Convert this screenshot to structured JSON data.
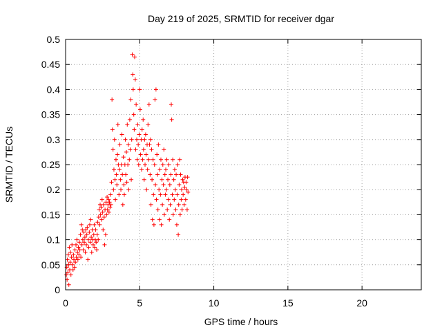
{
  "chart_data": {
    "type": "scatter",
    "title": "Day 219 of 2025, SRMTID for receiver dgar",
    "xlabel": "GPS time / hours",
    "ylabel": "SRMTID / TECUs",
    "xlim": [
      0,
      24
    ],
    "ylim": [
      0,
      0.5
    ],
    "grid": true,
    "marker": "+",
    "color": "#ff0000",
    "x_ticks": [
      0,
      5,
      10,
      15,
      20
    ],
    "x_tick_labels": [
      "0",
      "5",
      "10",
      "15",
      "20"
    ],
    "y_ticks": [
      0,
      0.05,
      0.1,
      0.15,
      0.2,
      0.25,
      0.3,
      0.35,
      0.4,
      0.45,
      0.5
    ],
    "y_tick_labels": [
      "0",
      "0.05",
      "0.1",
      "0.15",
      "0.2",
      "0.25",
      "0.3",
      "0.35",
      "0.4",
      "0.45",
      "0.5"
    ],
    "series": [
      {
        "name": "SRMTID",
        "points": [
          [
            0.05,
            0.03
          ],
          [
            0.08,
            0.045
          ],
          [
            0.1,
            0.02
          ],
          [
            0.12,
            0.06
          ],
          [
            0.15,
            0.035
          ],
          [
            0.18,
            0.07
          ],
          [
            0.2,
            0.05
          ],
          [
            0.22,
            0.01
          ],
          [
            0.25,
            0.085
          ],
          [
            0.28,
            0.04
          ],
          [
            0.3,
            0.055
          ],
          [
            0.33,
            0.075
          ],
          [
            0.36,
            0.03
          ],
          [
            0.4,
            0.065
          ],
          [
            0.43,
            0.09
          ],
          [
            0.46,
            0.05
          ],
          [
            0.5,
            0.04
          ],
          [
            0.53,
            0.07
          ],
          [
            0.56,
            0.06
          ],
          [
            0.6,
            0.045
          ],
          [
            0.63,
            0.08
          ],
          [
            0.66,
            0.055
          ],
          [
            0.7,
            0.09
          ],
          [
            0.73,
            0.065
          ],
          [
            0.76,
            0.1
          ],
          [
            0.8,
            0.075
          ],
          [
            0.83,
            0.06
          ],
          [
            0.86,
            0.085
          ],
          [
            0.9,
            0.07
          ],
          [
            0.93,
            0.095
          ],
          [
            0.96,
            0.08
          ],
          [
            1.0,
            0.11
          ],
          [
            1.03,
            0.065
          ],
          [
            1.06,
            0.13
          ],
          [
            1.1,
            0.09
          ],
          [
            1.13,
            0.12
          ],
          [
            1.16,
            0.1
          ],
          [
            1.2,
            0.08
          ],
          [
            1.23,
            0.115
          ],
          [
            1.26,
            0.095
          ],
          [
            1.3,
            0.105
          ],
          [
            1.33,
            0.075
          ],
          [
            1.36,
            0.12
          ],
          [
            1.4,
            0.09
          ],
          [
            1.43,
            0.11
          ],
          [
            1.46,
            0.125
          ],
          [
            1.5,
            0.06
          ],
          [
            1.53,
            0.1
          ],
          [
            1.56,
            0.085
          ],
          [
            1.6,
            0.115
          ],
          [
            1.63,
            0.13
          ],
          [
            1.66,
            0.095
          ],
          [
            1.7,
            0.14
          ],
          [
            1.73,
            0.105
          ],
          [
            1.76,
            0.075
          ],
          [
            1.8,
            0.12
          ],
          [
            1.83,
            0.1
          ],
          [
            1.86,
            0.09
          ],
          [
            1.9,
            0.11
          ],
          [
            1.93,
            0.13
          ],
          [
            1.96,
            0.085
          ],
          [
            2.0,
            0.1
          ],
          [
            2.03,
            0.12
          ],
          [
            2.06,
            0.095
          ],
          [
            2.1,
            0.08
          ],
          [
            2.13,
            0.11
          ],
          [
            2.16,
            0.135
          ],
          [
            2.2,
            0.1
          ],
          [
            2.23,
            0.145
          ],
          [
            2.26,
            0.16
          ],
          [
            2.3,
            0.13
          ],
          [
            2.33,
            0.17
          ],
          [
            2.36,
            0.15
          ],
          [
            2.4,
            0.165
          ],
          [
            2.43,
            0.14
          ],
          [
            2.46,
            0.18
          ],
          [
            2.5,
            0.155
          ],
          [
            2.53,
            0.12
          ],
          [
            2.56,
            0.17
          ],
          [
            2.6,
            0.145
          ],
          [
            2.63,
            0.09
          ],
          [
            2.66,
            0.16
          ],
          [
            2.7,
            0.11
          ],
          [
            2.73,
            0.175
          ],
          [
            2.76,
            0.15
          ],
          [
            2.8,
            0.185
          ],
          [
            2.83,
            0.16
          ],
          [
            2.86,
            0.17
          ],
          [
            2.9,
            0.18
          ],
          [
            2.93,
            0.155
          ],
          [
            2.96,
            0.175
          ],
          [
            3.0,
            0.165
          ],
          [
            3.03,
            0.19
          ],
          [
            3.06,
            0.17
          ],
          [
            3.1,
            0.215
          ],
          [
            3.13,
            0.38
          ],
          [
            3.16,
            0.32
          ],
          [
            3.2,
            0.28
          ],
          [
            3.23,
            0.2
          ],
          [
            3.26,
            0.24
          ],
          [
            3.3,
            0.3
          ],
          [
            3.33,
            0.22
          ],
          [
            3.36,
            0.18
          ],
          [
            3.4,
            0.26
          ],
          [
            3.43,
            0.23
          ],
          [
            3.46,
            0.21
          ],
          [
            3.5,
            0.27
          ],
          [
            3.53,
            0.33
          ],
          [
            3.56,
            0.25
          ],
          [
            3.6,
            0.19
          ],
          [
            3.63,
            0.24
          ],
          [
            3.66,
            0.29
          ],
          [
            3.7,
            0.22
          ],
          [
            3.73,
            0.2
          ],
          [
            3.76,
            0.25
          ],
          [
            3.8,
            0.31
          ],
          [
            3.83,
            0.23
          ],
          [
            3.86,
            0.17
          ],
          [
            3.9,
            0.265
          ],
          [
            3.93,
            0.21
          ],
          [
            3.96,
            0.19
          ],
          [
            4.0,
            0.25
          ],
          [
            4.03,
            0.3
          ],
          [
            4.06,
            0.23
          ],
          [
            4.1,
            0.275
          ],
          [
            4.13,
            0.215
          ],
          [
            4.16,
            0.33
          ],
          [
            4.2,
            0.25
          ],
          [
            4.23,
            0.29
          ],
          [
            4.26,
            0.2
          ],
          [
            4.3,
            0.26
          ],
          [
            4.33,
            0.34
          ],
          [
            4.36,
            0.28
          ],
          [
            4.4,
            0.38
          ],
          [
            4.43,
            0.22
          ],
          [
            4.46,
            0.3
          ],
          [
            4.5,
            0.47
          ],
          [
            4.53,
            0.43
          ],
          [
            4.56,
            0.4
          ],
          [
            4.6,
            0.35
          ],
          [
            4.63,
            0.32
          ],
          [
            4.66,
            0.465
          ],
          [
            4.7,
            0.42
          ],
          [
            4.73,
            0.28
          ],
          [
            4.76,
            0.37
          ],
          [
            4.8,
            0.3
          ],
          [
            4.83,
            0.26
          ],
          [
            4.86,
            0.33
          ],
          [
            4.9,
            0.29
          ],
          [
            4.93,
            0.25
          ],
          [
            4.96,
            0.31
          ],
          [
            5.0,
            0.4
          ],
          [
            5.03,
            0.36
          ],
          [
            5.06,
            0.27
          ],
          [
            5.1,
            0.3
          ],
          [
            5.13,
            0.24
          ],
          [
            5.16,
            0.32
          ],
          [
            5.2,
            0.26
          ],
          [
            5.23,
            0.34
          ],
          [
            5.26,
            0.28
          ],
          [
            5.3,
            0.22
          ],
          [
            5.33,
            0.3
          ],
          [
            5.36,
            0.25
          ],
          [
            5.4,
            0.31
          ],
          [
            5.43,
            0.27
          ],
          [
            5.46,
            0.2
          ],
          [
            5.5,
            0.29
          ],
          [
            5.53,
            0.24
          ],
          [
            5.56,
            0.33
          ],
          [
            5.6,
            0.26
          ],
          [
            5.63,
            0.37
          ],
          [
            5.66,
            0.29
          ],
          [
            5.7,
            0.23
          ],
          [
            5.73,
            0.3
          ],
          [
            5.76,
            0.17
          ],
          [
            5.8,
            0.28
          ],
          [
            5.83,
            0.22
          ],
          [
            5.86,
            0.14
          ],
          [
            5.9,
            0.26
          ],
          [
            5.93,
            0.19
          ],
          [
            5.96,
            0.13
          ],
          [
            6.0,
            0.25
          ],
          [
            6.03,
            0.38
          ],
          [
            6.06,
            0.21
          ],
          [
            6.1,
            0.4
          ],
          [
            6.13,
            0.18
          ],
          [
            6.16,
            0.27
          ],
          [
            6.2,
            0.23
          ],
          [
            6.23,
            0.16
          ],
          [
            6.26,
            0.29
          ],
          [
            6.3,
            0.2
          ],
          [
            6.33,
            0.14
          ],
          [
            6.36,
            0.24
          ],
          [
            6.4,
            0.19
          ],
          [
            6.43,
            0.26
          ],
          [
            6.46,
            0.13
          ],
          [
            6.5,
            0.22
          ],
          [
            6.53,
            0.17
          ],
          [
            6.56,
            0.25
          ],
          [
            6.6,
            0.21
          ],
          [
            6.63,
            0.28
          ],
          [
            6.66,
            0.15
          ],
          [
            6.7,
            0.23
          ],
          [
            6.73,
            0.19
          ],
          [
            6.76,
            0.24
          ],
          [
            6.8,
            0.2
          ],
          [
            6.83,
            0.26
          ],
          [
            6.86,
            0.16
          ],
          [
            6.9,
            0.22
          ],
          [
            6.93,
            0.18
          ],
          [
            6.96,
            0.25
          ],
          [
            7.0,
            0.14
          ],
          [
            7.03,
            0.21
          ],
          [
            7.06,
            0.17
          ],
          [
            7.1,
            0.23
          ],
          [
            7.13,
            0.37
          ],
          [
            7.16,
            0.34
          ],
          [
            7.2,
            0.19
          ],
          [
            7.23,
            0.26
          ],
          [
            7.26,
            0.15
          ],
          [
            7.3,
            0.22
          ],
          [
            7.33,
            0.18
          ],
          [
            7.36,
            0.24
          ],
          [
            7.4,
            0.2
          ],
          [
            7.43,
            0.16
          ],
          [
            7.46,
            0.23
          ],
          [
            7.5,
            0.13
          ],
          [
            7.53,
            0.19
          ],
          [
            7.56,
            0.25
          ],
          [
            7.6,
            0.11
          ],
          [
            7.63,
            0.17
          ],
          [
            7.66,
            0.21
          ],
          [
            7.7,
            0.26
          ],
          [
            7.73,
            0.15
          ],
          [
            7.76,
            0.23
          ],
          [
            7.8,
            0.18
          ],
          [
            7.83,
            0.2
          ],
          [
            7.86,
            0.16
          ],
          [
            7.9,
            0.22
          ],
          [
            7.93,
            0.19
          ],
          [
            7.96,
            0.215
          ],
          [
            8.0,
            0.17
          ],
          [
            8.03,
            0.205
          ],
          [
            8.06,
            0.225
          ],
          [
            8.1,
            0.18
          ],
          [
            8.13,
            0.215
          ],
          [
            8.16,
            0.2
          ],
          [
            8.2,
            0.16
          ],
          [
            8.23,
            0.225
          ],
          [
            8.26,
            0.195
          ]
        ]
      }
    ]
  }
}
